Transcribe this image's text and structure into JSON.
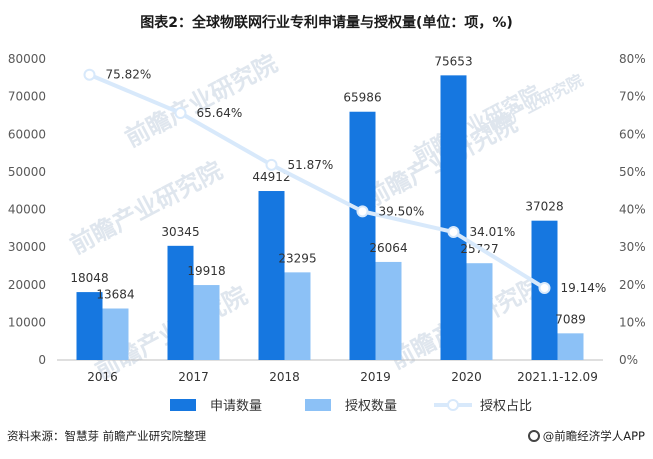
{
  "page": {
    "title": "图表2：全球物联网行业专利申请量与授权量(单位：项，%)",
    "source": "资料来源：智慧芽 前瞻产业研究院整理",
    "brand": "@前瞻经济学人APP",
    "watermark": "前瞻产业研究院"
  },
  "colors": {
    "apply": "#1677e0",
    "grant": "#8cc1f6",
    "ratio": "#d8e9fb",
    "axis_text": "#595959",
    "grid": "#e6e6e6"
  },
  "chart_data": {
    "type": "bar",
    "title": "图表2：全球物联网行业专利申请量与授权量(单位：项，%)",
    "categories": [
      "2016",
      "2017",
      "2018",
      "2019",
      "2020",
      "2021.1-12.09"
    ],
    "series": [
      {
        "name": "申请数量",
        "type": "bar",
        "axis": "left",
        "values": [
          18048,
          30345,
          44912,
          65986,
          75653,
          37028
        ],
        "labels": [
          "18048",
          "30345",
          "44912",
          "65986",
          "75653",
          "37028"
        ]
      },
      {
        "name": "授权数量",
        "type": "bar",
        "axis": "left",
        "values": [
          13684,
          19918,
          23295,
          26064,
          25727,
          7089
        ],
        "labels": [
          "13684",
          "19918",
          "23295",
          "26064",
          "25727",
          "7089"
        ]
      },
      {
        "name": "授权占比",
        "type": "line",
        "axis": "right",
        "values": [
          75.82,
          65.64,
          51.87,
          39.5,
          34.01,
          19.14
        ],
        "labels": [
          "75.82%",
          "65.64%",
          "51.87%",
          "39.50%",
          "34.01%",
          "19.14%"
        ]
      }
    ],
    "y_left": {
      "min": 0,
      "max": 80000,
      "step": 10000,
      "ticks": [
        "0",
        "10000",
        "20000",
        "30000",
        "40000",
        "50000",
        "60000",
        "70000",
        "80000"
      ]
    },
    "y_right": {
      "min": 0,
      "max": 80,
      "step": 10,
      "ticks": [
        "0%",
        "10%",
        "20%",
        "30%",
        "40%",
        "50%",
        "60%",
        "70%",
        "80%"
      ]
    },
    "legend": {
      "position": "bottom",
      "entries": [
        "申请数量",
        "授权数量",
        "授权占比"
      ]
    }
  }
}
